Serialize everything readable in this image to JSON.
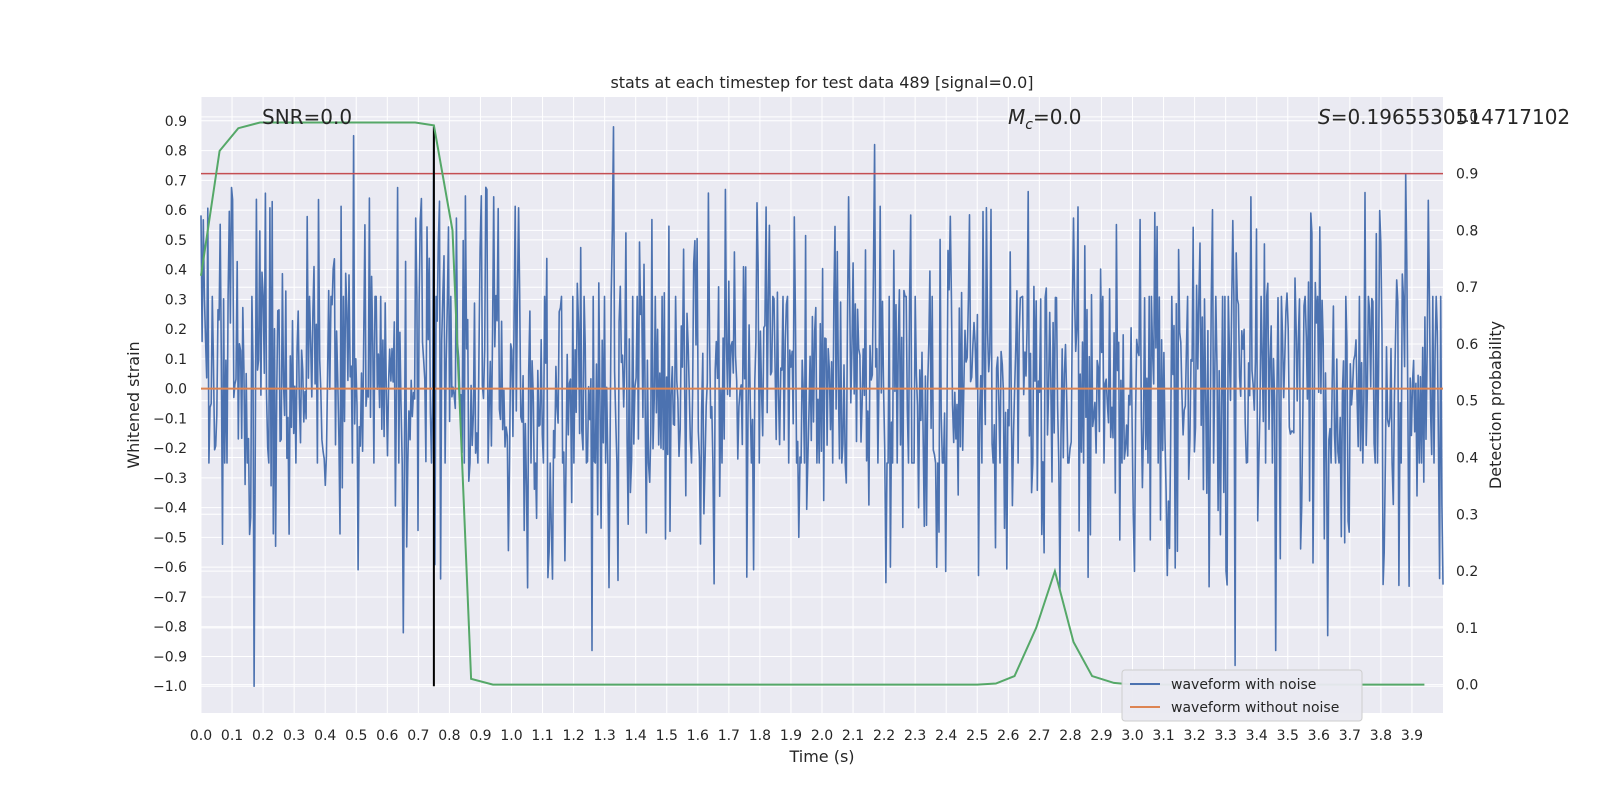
{
  "chart_data": {
    "type": "line",
    "title": "stats at each timestep for test data 489 [signal=0.0]",
    "xlabel": "Time (s)",
    "ylabel": "Whitened strain",
    "y2label": "Detection probability",
    "xlim": [
      0.0,
      4.0
    ],
    "ylim": [
      -1.09,
      0.98
    ],
    "y2lim": [
      -0.05,
      1.035
    ],
    "x_ticks": [
      "0.0",
      "0.1",
      "0.2",
      "0.3",
      "0.4",
      "0.5",
      "0.6",
      "0.7",
      "0.8",
      "0.9",
      "1.0",
      "1.1",
      "1.2",
      "1.3",
      "1.4",
      "1.5",
      "1.6",
      "1.7",
      "1.8",
      "1.9",
      "2.0",
      "2.1",
      "2.2",
      "2.3",
      "2.4",
      "2.5",
      "2.6",
      "2.7",
      "2.8",
      "2.9",
      "3.0",
      "3.1",
      "3.2",
      "3.3",
      "3.4",
      "3.5",
      "3.6",
      "3.7",
      "3.8",
      "3.9"
    ],
    "y_ticks": [
      "0.9",
      "0.8",
      "0.7",
      "0.6",
      "0.5",
      "0.4",
      "0.3",
      "0.2",
      "0.1",
      "0.0",
      "−0.1",
      "−0.2",
      "−0.3",
      "−0.4",
      "−0.5",
      "−0.6",
      "−0.7",
      "−0.8",
      "−0.9",
      "−1.0"
    ],
    "y2_ticks": [
      "1.0",
      "0.9",
      "0.8",
      "0.7",
      "0.6",
      "0.5",
      "0.4",
      "0.3",
      "0.2",
      "0.1",
      "0.0"
    ],
    "noise_series": {
      "name": "waveform with noise",
      "color": "#4c72b0",
      "n_samples": 1100,
      "typical_low": -0.25,
      "typical_high": 0.31,
      "peaks": [
        {
          "x": 0.17,
          "y": 0.71
        },
        {
          "x": 0.49,
          "y": 0.85
        },
        {
          "x": 0.75,
          "y": 0.88
        },
        {
          "x": 1.33,
          "y": 0.88
        },
        {
          "x": 2.17,
          "y": 0.82
        },
        {
          "x": 3.88,
          "y": 0.72
        }
      ],
      "troughs": [
        {
          "x": 0.17,
          "y": -1.0
        },
        {
          "x": 0.65,
          "y": -0.82
        },
        {
          "x": 1.26,
          "y": -0.88
        },
        {
          "x": 3.33,
          "y": -0.93
        },
        {
          "x": 3.46,
          "y": -0.88
        },
        {
          "x": 3.63,
          "y": -0.83
        }
      ]
    },
    "clean_series": {
      "name": "waveform without noise",
      "color": "#dd8452",
      "value": 0.0
    },
    "probability_series": {
      "name": "Detection probability",
      "color": "#55a868",
      "x": [
        0.0,
        0.06,
        0.12,
        0.19,
        0.25,
        0.31,
        0.5,
        0.62,
        0.69,
        0.75,
        0.81,
        0.87,
        0.94,
        1.0,
        1.5,
        2.0,
        2.5,
        2.56,
        2.62,
        2.69,
        2.75,
        2.81,
        2.87,
        2.94,
        3.0,
        3.5,
        3.94
      ],
      "y": [
        0.72,
        0.94,
        0.98,
        0.99,
        0.99,
        0.99,
        0.99,
        0.99,
        0.99,
        0.985,
        0.8,
        0.01,
        0.0,
        0.0,
        0.0,
        0.0,
        0.0,
        0.002,
        0.015,
        0.1,
        0.2,
        0.075,
        0.015,
        0.003,
        0.0,
        0.0,
        0.0
      ]
    },
    "threshold_line": {
      "value": 0.9,
      "color": "#c44e52",
      "axis": "right"
    },
    "marker_line": {
      "x": 0.75,
      "y_from": -1.0,
      "y_to": 0.88,
      "color": "#000000"
    },
    "annotations": {
      "snr": "SNR=0.0",
      "mc_symbol": "M",
      "mc_sub": "c",
      "mc_value": "=0.0",
      "s_symbol": "S",
      "s_value": "=0.19655305147171​02"
    },
    "legend": {
      "location": "lower-right",
      "entries": [
        {
          "label": "waveform with noise",
          "color": "#4c72b0"
        },
        {
          "label": "waveform without noise",
          "color": "#dd8452"
        }
      ]
    },
    "grid": true,
    "style": {
      "background": "#eaeaf2",
      "grid_color": "#ffffff"
    }
  }
}
